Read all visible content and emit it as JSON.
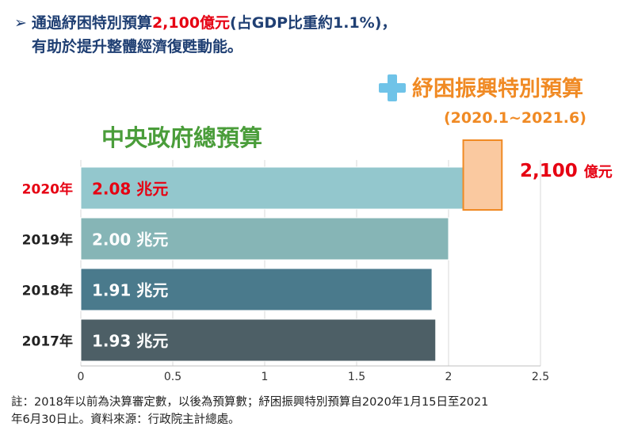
{
  "headline": {
    "arrow": "➢",
    "part1": "通過紓困特別預算",
    "amount": "2,100億元",
    "part2": "(占GDP比重約1.1%)，",
    "line2": "有助於提升整體經濟復甦動能。"
  },
  "relief": {
    "plus_icon": "plus-icon",
    "title": "紓困振興特別預算",
    "period": "(2020.1~2021.6)",
    "value": "2,100",
    "unit": "億元",
    "added_value_trillion": 0.21
  },
  "central_title": "中央政府總預算",
  "chart_data": {
    "type": "bar",
    "orientation": "horizontal",
    "categories": [
      "2020年",
      "2019年",
      "2018年",
      "2017年"
    ],
    "values": [
      2.08,
      2.0,
      1.91,
      1.93
    ],
    "value_labels": [
      "2.08 兆元",
      "2.00 兆元",
      "1.91 兆元",
      "1.93 兆元"
    ],
    "xlim": [
      0,
      2.5
    ],
    "xticks": [
      "0",
      "0.5",
      "1",
      "1.5",
      "2",
      "2.5"
    ],
    "grid": true,
    "colors": {
      "bars": [
        "#93c7cd",
        "#86b5b6",
        "#4a7a8c",
        "#4d5f66"
      ],
      "relief_bar": "#fac9a0",
      "relief_border": "#f08a24",
      "highlight_text": "#e60012",
      "category_highlight": "#e60012",
      "category_default": "#222222"
    }
  },
  "note": {
    "line1": "註：2018年以前為決算審定數，以後為預算數；紓困振興特別預算自2020年1月15日至2021",
    "line2": "年6月30日止。資料來源：行政院主計總處。"
  }
}
